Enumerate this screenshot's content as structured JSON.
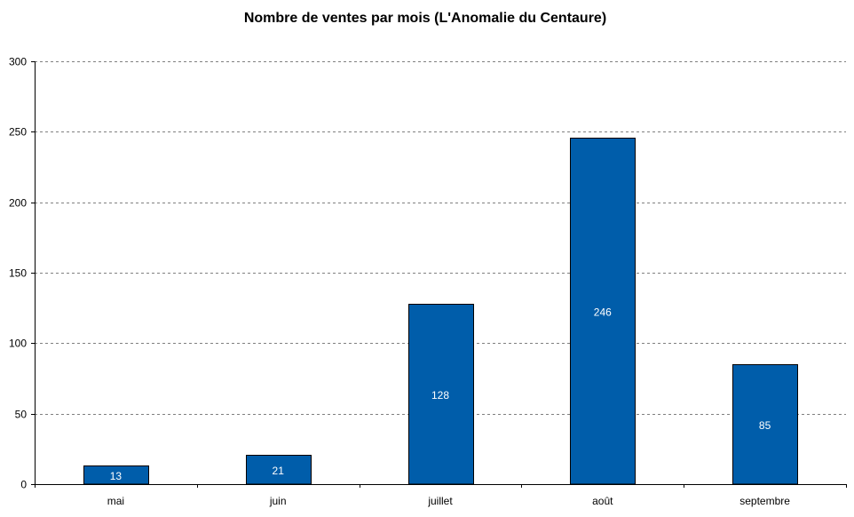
{
  "chart_data": {
    "type": "bar",
    "title": "Nombre de ventes par mois (L'Anomalie du Centaure)",
    "xlabel": "",
    "ylabel": "",
    "categories": [
      "mai",
      "juin",
      "juillet",
      "août",
      "septembre"
    ],
    "values": [
      13,
      21,
      128,
      246,
      85
    ],
    "data_labels": [
      "13",
      "21",
      "128",
      "246",
      "85"
    ],
    "ylim": [
      0,
      300
    ],
    "yticks": [
      0,
      50,
      100,
      150,
      200,
      250,
      300
    ],
    "grid": true,
    "legend": "none",
    "colors": {
      "bar": "#005DAA",
      "bar_border": "#000000",
      "grid": "#808080",
      "axis": "#000000",
      "data_label": "#ffffff"
    }
  }
}
